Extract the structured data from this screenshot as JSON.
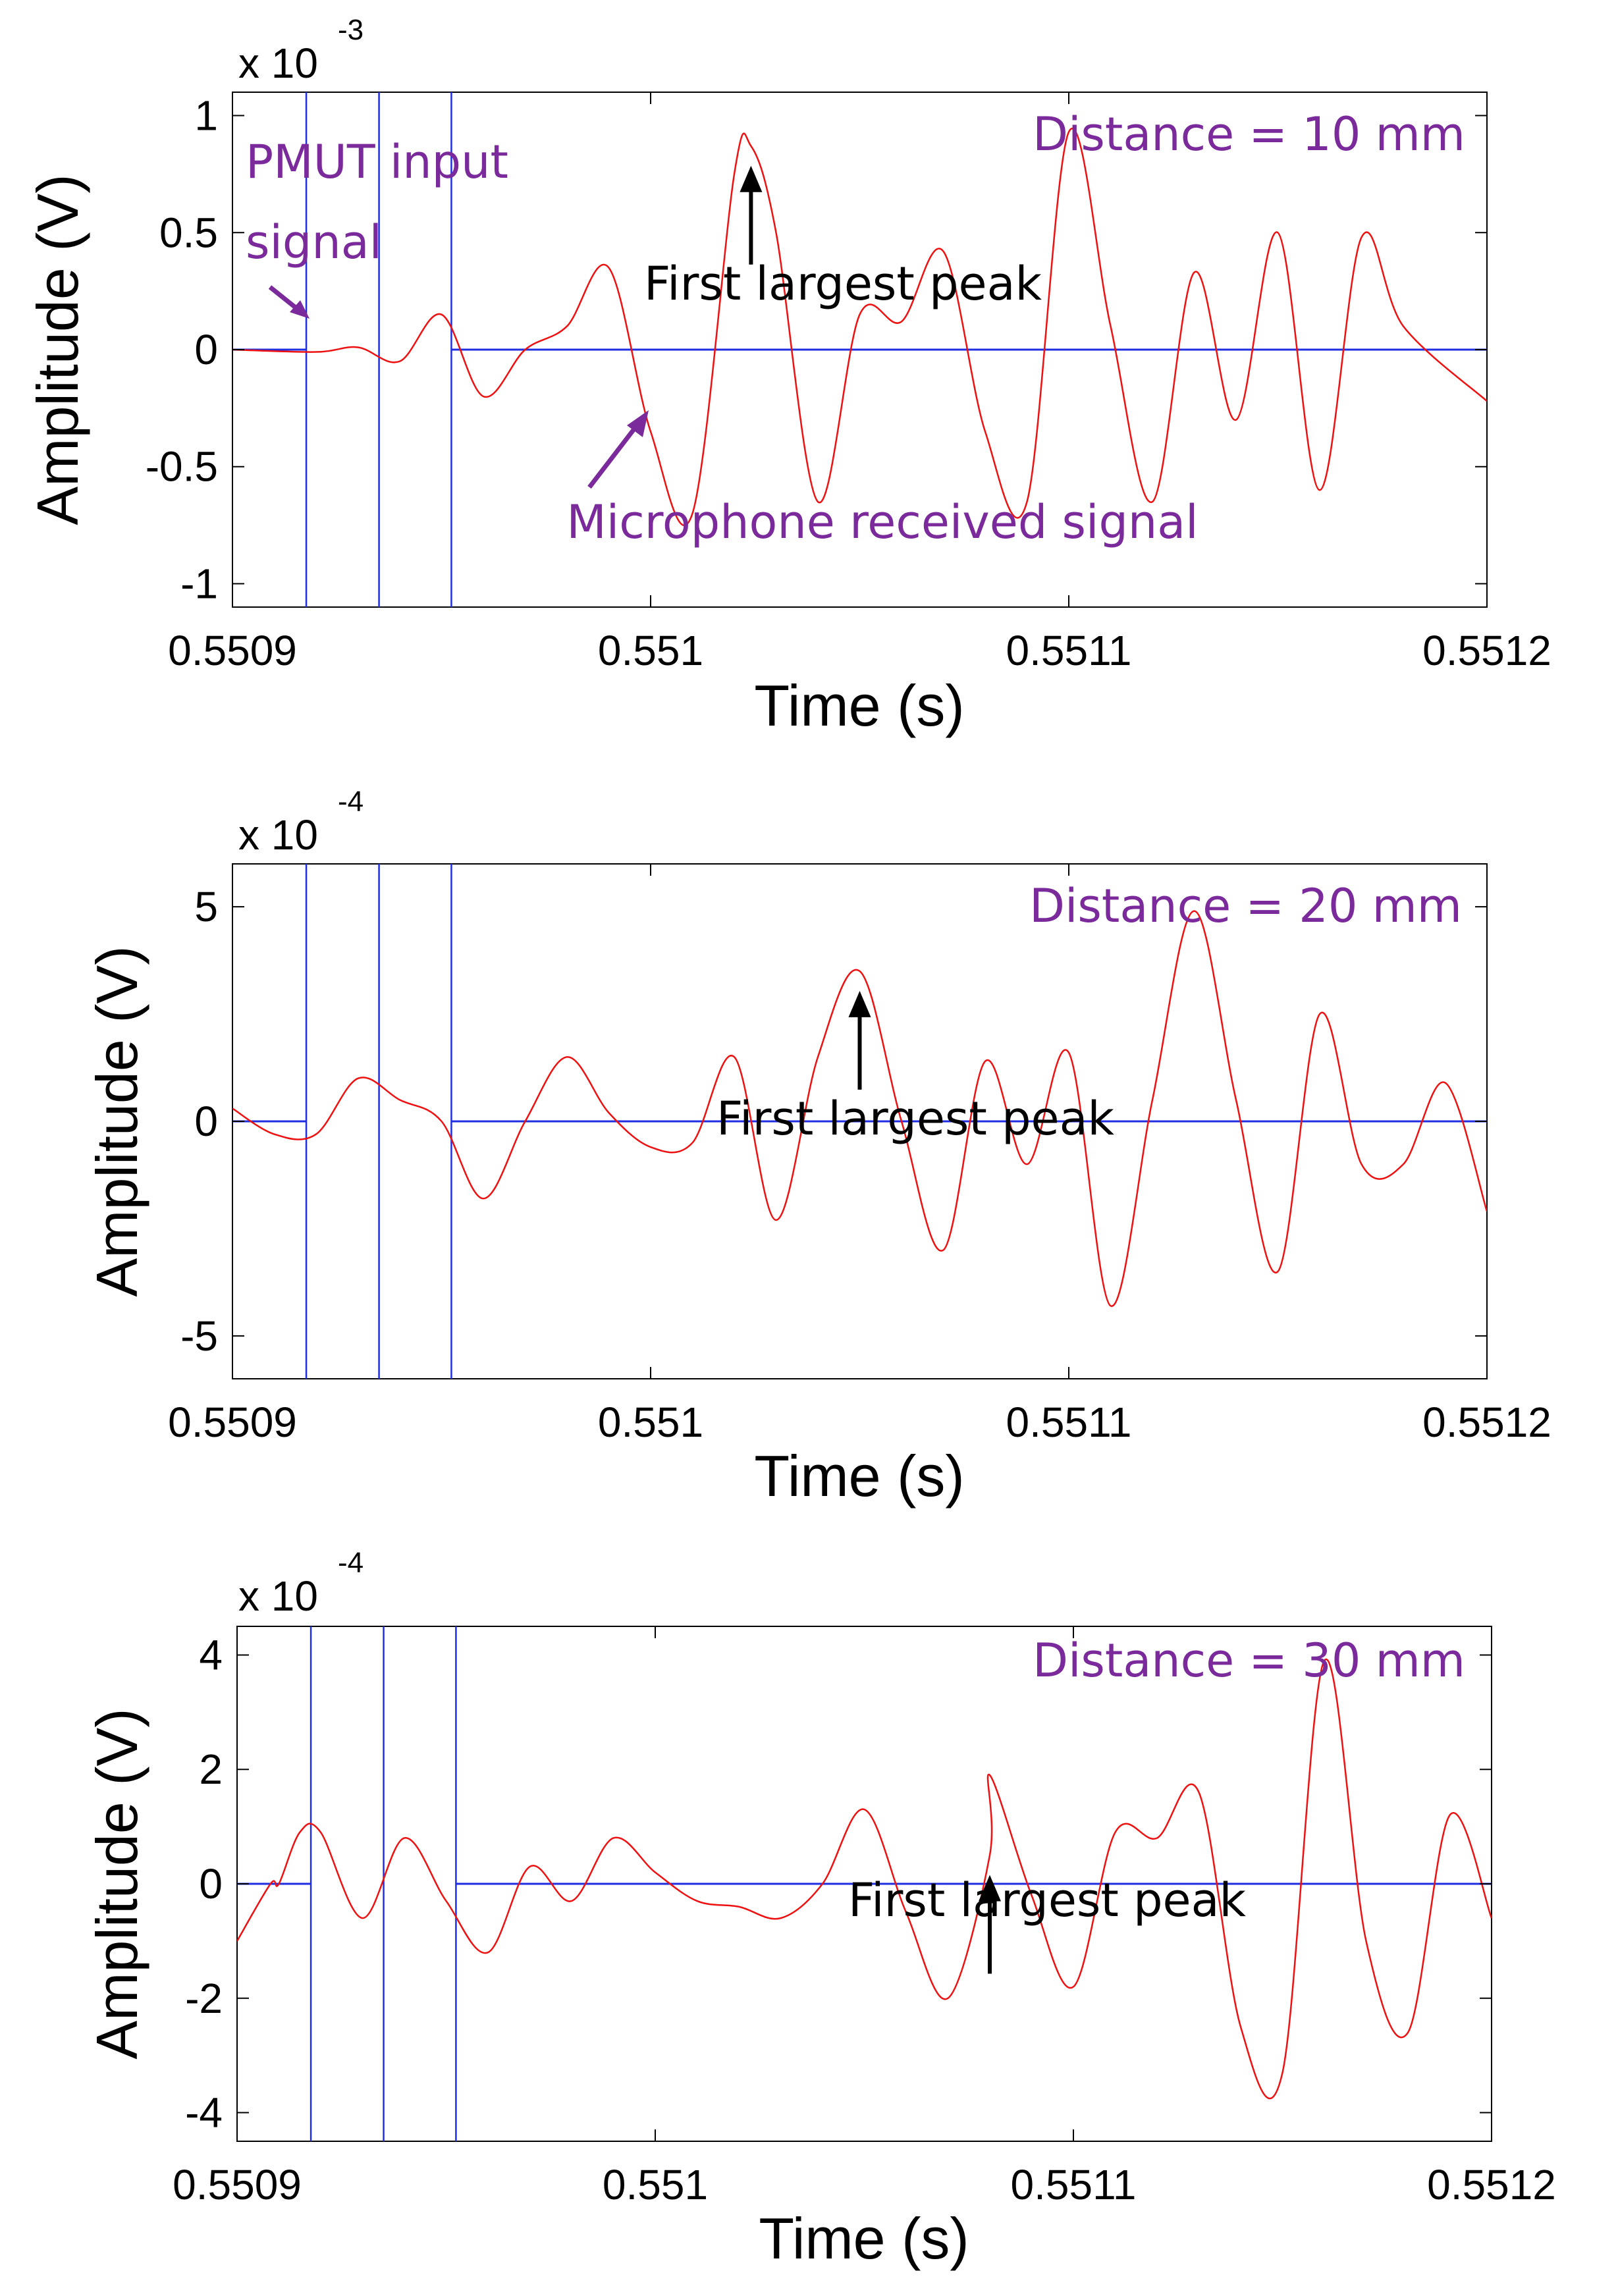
{
  "colors": {
    "input": "#1f2ee0",
    "mic": "#ee1111",
    "annotation": "#7a2a9a",
    "peak": "#000000"
  },
  "chart_data": [
    {
      "type": "line",
      "xlabel": "Time (s)",
      "ylabel": "Amplitude (V)",
      "xlim": [
        0.5509,
        0.5512
      ],
      "ylim": [
        -1.1,
        1.1
      ],
      "scale_label": "x 10",
      "scale_exp": "-3",
      "xticks": [
        0.5509,
        0.551,
        0.5511,
        0.5512
      ],
      "xtick_labels": [
        "0.5509",
        "0.551",
        "0.5511",
        "0.5512"
      ],
      "yticks": [
        -1,
        -0.5,
        0,
        0.5,
        1
      ],
      "ytick_labels": [
        "-1",
        "-0.5",
        "0",
        "0.5",
        "1"
      ],
      "input": {
        "name": "PMUT input signal",
        "pulse_start": 0.55091765,
        "edge2": 0.55093505,
        "pulse_end": 0.55095235,
        "level": 0
      },
      "mic": {
        "name": "Microphone received signal",
        "points": [
          [
            0.5509,
            0.0
          ],
          [
            0.55092,
            -0.01
          ],
          [
            0.55093,
            0.01
          ],
          [
            0.55094,
            -0.05
          ],
          [
            0.55095,
            0.15
          ],
          [
            0.55096,
            -0.2
          ],
          [
            0.55097,
            0.0
          ],
          [
            0.55098,
            0.1
          ],
          [
            0.55099,
            0.35
          ],
          [
            0.551,
            -0.35
          ],
          [
            0.55101,
            -0.7
          ],
          [
            0.55102,
            0.75
          ],
          [
            0.551024,
            0.87
          ],
          [
            0.55103,
            0.5
          ],
          [
            0.55104,
            -0.65
          ],
          [
            0.55105,
            0.15
          ],
          [
            0.55106,
            0.12
          ],
          [
            0.55107,
            0.42
          ],
          [
            0.55108,
            -0.35
          ],
          [
            0.55109,
            -0.65
          ],
          [
            0.5511,
            0.93
          ],
          [
            0.55111,
            0.1
          ],
          [
            0.55112,
            -0.65
          ],
          [
            0.55113,
            0.33
          ],
          [
            0.55114,
            -0.3
          ],
          [
            0.55115,
            0.5
          ],
          [
            0.55116,
            -0.6
          ],
          [
            0.55117,
            0.48
          ],
          [
            0.55118,
            0.1
          ],
          [
            0.5512,
            -0.22
          ]
        ]
      },
      "peak_x": 0.551024,
      "annotations": {
        "distance": "Distance = 10 mm",
        "peak": "First largest peak",
        "input_label_1": "PMUT input",
        "input_label_2": "signal",
        "mic_label": "Microphone received signal"
      }
    },
    {
      "type": "line",
      "xlabel": "Time (s)",
      "ylabel": "Amplitude (V)",
      "xlim": [
        0.5509,
        0.5512
      ],
      "ylim": [
        -6,
        6
      ],
      "scale_label": "x 10",
      "scale_exp": "-4",
      "xticks": [
        0.5509,
        0.551,
        0.5511,
        0.5512
      ],
      "xtick_labels": [
        "0.5509",
        "0.551",
        "0.5511",
        "0.5512"
      ],
      "yticks": [
        -5,
        0,
        5
      ],
      "ytick_labels": [
        "-5",
        "0",
        "5"
      ],
      "input": {
        "name": "PMUT input signal",
        "pulse_start": 0.55091765,
        "edge2": 0.55093505,
        "pulse_end": 0.55095235,
        "level": 0
      },
      "mic": {
        "name": "Microphone received signal",
        "points": [
          [
            0.5509,
            0.3
          ],
          [
            0.55091,
            -0.3
          ],
          [
            0.55092,
            -0.3
          ],
          [
            0.55093,
            1.0
          ],
          [
            0.55094,
            0.5
          ],
          [
            0.55095,
            0.0
          ],
          [
            0.55096,
            -1.8
          ],
          [
            0.55097,
            0.0
          ],
          [
            0.55098,
            1.5
          ],
          [
            0.55099,
            0.2
          ],
          [
            0.551,
            -0.6
          ],
          [
            0.55101,
            -0.5
          ],
          [
            0.55102,
            1.5
          ],
          [
            0.55103,
            -2.3
          ],
          [
            0.55104,
            1.5
          ],
          [
            0.55105,
            3.5
          ],
          [
            0.55106,
            0.0
          ],
          [
            0.55107,
            -3.0
          ],
          [
            0.55108,
            1.4
          ],
          [
            0.55109,
            -1.0
          ],
          [
            0.5511,
            1.6
          ],
          [
            0.55111,
            -4.3
          ],
          [
            0.55112,
            0.5
          ],
          [
            0.55113,
            4.9
          ],
          [
            0.55114,
            0.5
          ],
          [
            0.55115,
            -3.5
          ],
          [
            0.55116,
            2.5
          ],
          [
            0.55117,
            -1.0
          ],
          [
            0.55118,
            -1.0
          ],
          [
            0.55119,
            0.9
          ],
          [
            0.5512,
            -2.1
          ]
        ]
      },
      "peak_x": 0.55105,
      "annotations": {
        "distance": "Distance = 20 mm",
        "peak": "First largest peak"
      }
    },
    {
      "type": "line",
      "xlabel": "Time (s)",
      "ylabel": "Amplitude (V)",
      "xlim": [
        0.5509,
        0.5512
      ],
      "ylim": [
        -4.5,
        4.5
      ],
      "scale_label": "x 10",
      "scale_exp": "-4",
      "xticks": [
        0.5509,
        0.551,
        0.5511,
        0.5512
      ],
      "xtick_labels": [
        "0.5509",
        "0.551",
        "0.5511",
        "0.5512"
      ],
      "yticks": [
        -4,
        -2,
        0,
        2,
        4
      ],
      "ytick_labels": [
        "-4",
        "-2",
        "0",
        "2",
        "4"
      ],
      "input": {
        "name": "PMUT input signal",
        "pulse_start": 0.55091765,
        "edge2": 0.55093505,
        "pulse_end": 0.55095235,
        "level": 0
      },
      "mic": {
        "name": "Microphone received signal",
        "points": [
          [
            0.5509,
            -1.0
          ],
          [
            0.55091,
            0.0
          ],
          [
            0.550915,
            0.9
          ],
          [
            0.55092,
            0.9
          ],
          [
            0.55093,
            -0.6
          ],
          [
            0.55094,
            0.8
          ],
          [
            0.55095,
            -0.3
          ],
          [
            0.55096,
            -1.2
          ],
          [
            0.55097,
            0.3
          ],
          [
            0.55098,
            -0.3
          ],
          [
            0.55099,
            0.8
          ],
          [
            0.551,
            0.2
          ],
          [
            0.55101,
            -0.3
          ],
          [
            0.55102,
            -0.4
          ],
          [
            0.55103,
            -0.6
          ],
          [
            0.55104,
            0.0
          ],
          [
            0.55105,
            1.3
          ],
          [
            0.55106,
            -0.5
          ],
          [
            0.55107,
            -2.0
          ],
          [
            0.55108,
            0.5
          ],
          [
            0.550908,
            0.0
          ],
          [
            0.55108,
            1.9
          ],
          [
            0.55109,
            -0.2
          ],
          [
            0.5511,
            -1.8
          ],
          [
            0.55111,
            0.9
          ],
          [
            0.55112,
            0.8
          ],
          [
            0.55113,
            1.6
          ],
          [
            0.55114,
            -2.5
          ],
          [
            0.55115,
            -3.3
          ],
          [
            0.55116,
            3.9
          ],
          [
            0.55117,
            -1.0
          ],
          [
            0.55118,
            -2.6
          ],
          [
            0.55119,
            1.2
          ],
          [
            0.5512,
            -0.6
          ]
        ]
      },
      "peak_x": 0.55108,
      "annotations": {
        "distance": "Distance = 30 mm",
        "peak": "First largest peak"
      }
    }
  ]
}
